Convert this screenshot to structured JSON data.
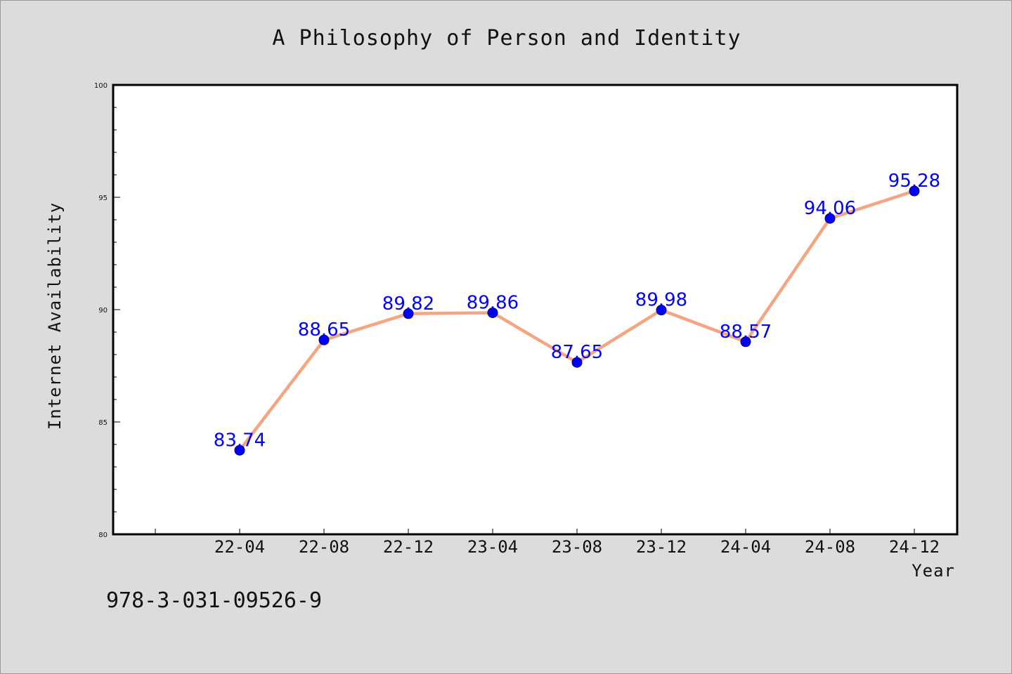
{
  "footer_code": "978-3-031-09526-9",
  "colors": {
    "background": "#dcdcdc",
    "plot_area": "#ffffff",
    "line": "#f4a582",
    "marker": "#0000ff",
    "data_label": "#0000ff"
  },
  "chart_data": {
    "type": "line",
    "title": "A Philosophy of Person and Identity",
    "xlabel": "Year",
    "ylabel": "Internet Availability",
    "categories": [
      "22-04",
      "22-08",
      "22-12",
      "23-04",
      "23-08",
      "23-12",
      "24-04",
      "24-08",
      "24-12"
    ],
    "values": [
      83.74,
      88.65,
      89.82,
      89.86,
      87.65,
      89.98,
      88.57,
      94.06,
      95.28
    ],
    "data_labels": [
      "83.74",
      "88.65",
      "89.82",
      "89.86",
      "87.65",
      "89.98",
      "88.57",
      "94.06",
      "95.28"
    ],
    "ylim": [
      80,
      100
    ],
    "yticks": [
      80,
      85,
      90,
      95,
      100
    ],
    "ytick_labels": [
      "80",
      "85",
      "90",
      "95",
      "100"
    ],
    "grid": false,
    "legend": "none"
  }
}
